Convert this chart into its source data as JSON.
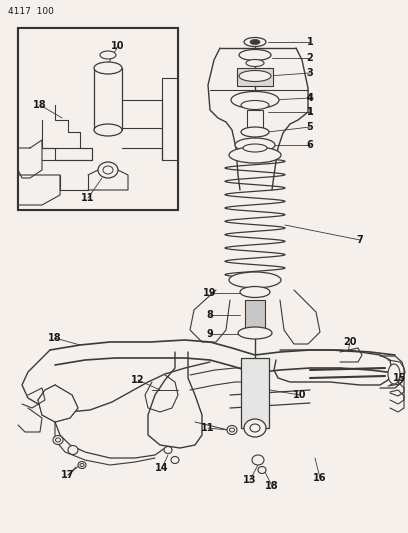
{
  "title": "4117  100",
  "bg": "#f5f0eb",
  "lc": "#3a3a3a",
  "tc": "#1a1a1a",
  "fig_w": 4.08,
  "fig_h": 5.33,
  "dpi": 100
}
